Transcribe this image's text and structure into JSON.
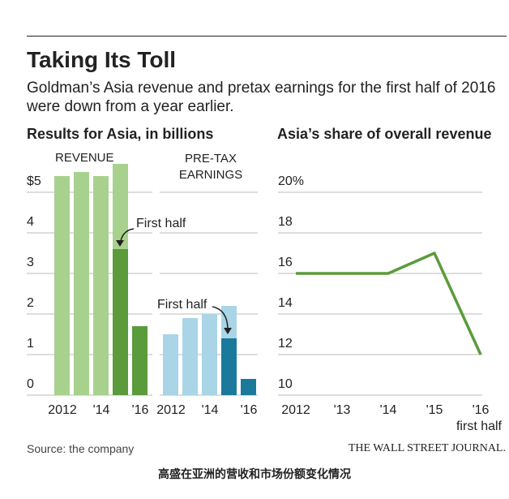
{
  "title": "Taking Its Toll",
  "subtitle": "Goldman’s Asia revenue and pretax earnings for the first half of 2016 were down from a year earlier.",
  "left_heading": "Results for Asia, in billions",
  "source": "Source: the company",
  "publisher": "THE WALL STREET JOURNAL.",
  "caption": "高盛在亚洲的营收和市场份额变化情况",
  "chart_data": [
    {
      "type": "bar",
      "title": "REVENUE",
      "categories": [
        "2012",
        null,
        "'14",
        null,
        "'16"
      ],
      "series": [
        {
          "color": "#a9d18e",
          "values": [
            5.4,
            5.5,
            5.4,
            5.7,
            null
          ]
        },
        {
          "name": "First half",
          "color": "#5b9b3c",
          "values": [
            null,
            null,
            null,
            3.6,
            1.7
          ]
        }
      ],
      "ylim": [
        0,
        5
      ],
      "yticks": [
        0,
        1,
        2,
        3,
        4,
        {
          "value": 5,
          "label": "$5"
        }
      ],
      "grid": true
    },
    {
      "type": "bar",
      "title": "PRE-TAX EARNINGS",
      "categories": [
        "2012",
        null,
        "'14",
        null,
        "'16"
      ],
      "series": [
        {
          "color": "#a9d5e6",
          "values": [
            1.5,
            1.9,
            2.0,
            2.2,
            null
          ]
        },
        {
          "name": "First half",
          "color": "#1b7a9c",
          "values": [
            null,
            null,
            null,
            1.4,
            0.4
          ]
        }
      ],
      "ylim": [
        0,
        5
      ],
      "grid": true
    },
    {
      "type": "line",
      "title": "Asia’s share of overall revenue",
      "categories": [
        "2012",
        "'13",
        "'14",
        "'15",
        "'16"
      ],
      "annotation": "first half",
      "series": [
        {
          "color": "#5b9b3c",
          "values": [
            16,
            16,
            16,
            17,
            12
          ]
        }
      ],
      "ylim": [
        10,
        20
      ],
      "yticks": [
        10,
        12,
        14,
        16,
        18,
        {
          "value": 20,
          "label": "20%"
        }
      ],
      "grid": true
    }
  ]
}
